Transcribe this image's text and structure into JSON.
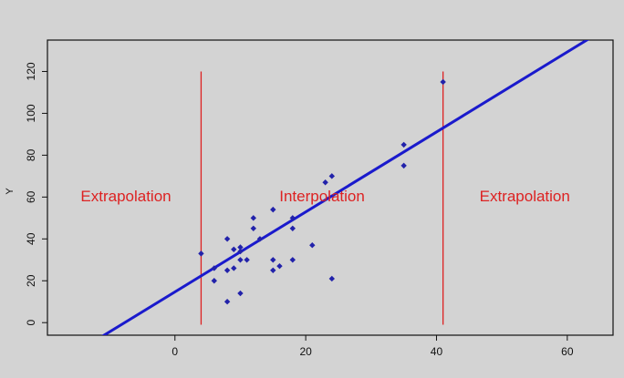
{
  "chart_data": {
    "type": "scatter",
    "xlabel": "",
    "ylabel": "Y",
    "xlim": [
      -19.5,
      67
    ],
    "ylim": [
      -6,
      135
    ],
    "xticks": [
      0,
      20,
      40,
      60
    ],
    "yticks": [
      0,
      20,
      40,
      60,
      80,
      100,
      120
    ],
    "grid": false,
    "points": {
      "color": "#2222aa",
      "x": [
        4,
        6,
        6,
        8,
        8,
        8,
        9,
        9,
        10,
        10,
        10,
        10,
        11,
        12,
        12,
        13,
        15,
        15,
        15,
        16,
        18,
        18,
        18,
        21,
        23,
        24,
        24,
        35,
        35,
        41
      ],
      "y": [
        33,
        26,
        20,
        40,
        25,
        10,
        35,
        26,
        36,
        34,
        30,
        14,
        30,
        50,
        45,
        40,
        54,
        30,
        25,
        27,
        50,
        45,
        30,
        37,
        67,
        70,
        21,
        85,
        75,
        115
      ]
    },
    "regression_line": {
      "color": "#1a1acc",
      "intercept": 14.7,
      "slope": 1.91
    },
    "boundaries": {
      "color": "#dd2222",
      "x": [
        4,
        41
      ],
      "y_range": [
        -1,
        120
      ]
    },
    "annotations": [
      {
        "text": "Extrapolation",
        "x": -7.5,
        "y": 60
      },
      {
        "text": "Interpolation",
        "x": 22.5,
        "y": 60
      },
      {
        "text": "Extrapolation",
        "x": 53.5,
        "y": 60
      }
    ],
    "annotation_color": "#dd2222"
  }
}
